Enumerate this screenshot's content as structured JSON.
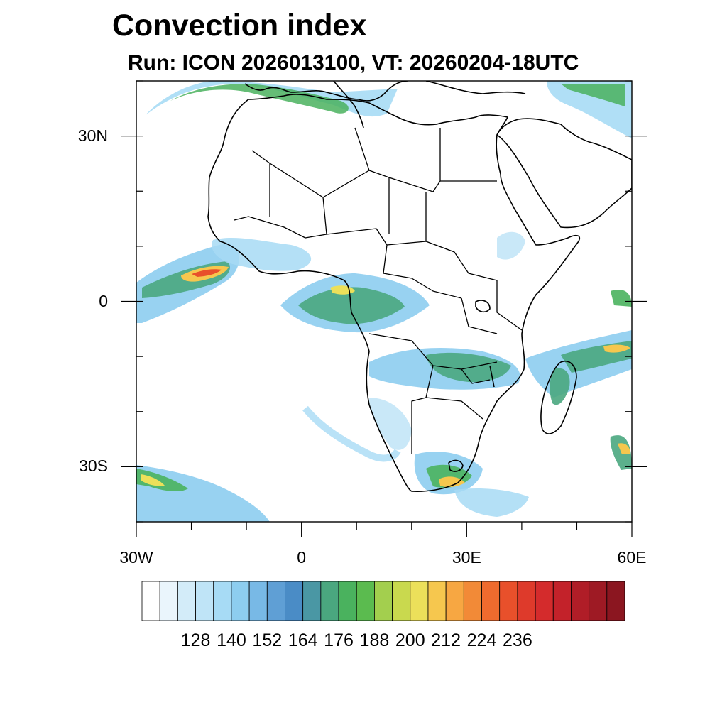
{
  "title": "Convection index",
  "subtitle": "Run: ICON 2026013100,  VT: 20260204-18UTC",
  "map": {
    "projection": "cylindrical equidistant",
    "lon_range": [
      -30,
      60
    ],
    "lat_range": [
      -40,
      40
    ],
    "x_ticks": [
      {
        "lon": -30,
        "label": "30W"
      },
      {
        "lon": 0,
        "label": "0"
      },
      {
        "lon": 30,
        "label": "30E"
      },
      {
        "lon": 60,
        "label": "60E"
      }
    ],
    "y_ticks": [
      {
        "lat": 30,
        "label": "30N"
      },
      {
        "lat": 0,
        "label": "0"
      },
      {
        "lat": -30,
        "label": "30S"
      }
    ],
    "coastline_color": "#000000"
  },
  "colorbar": {
    "colors": [
      "#ffffff",
      "#eaf5fc",
      "#d3ecf9",
      "#bfe4f7",
      "#a7dbf5",
      "#8dcdef",
      "#78b9e6",
      "#5f9fd5",
      "#4a8cc6",
      "#4a97a4",
      "#4aa77f",
      "#4ab25e",
      "#5bbb4f",
      "#a3cf4e",
      "#c9d94e",
      "#ece05a",
      "#f6c74e",
      "#f7a742",
      "#f28a37",
      "#ef6b2e",
      "#e8502b",
      "#de3a2b",
      "#d42b2c",
      "#c3222a",
      "#b01d27",
      "#9e1a24",
      "#8b1620"
    ],
    "labels": [
      "128",
      "140",
      "152",
      "164",
      "176",
      "188",
      "200",
      "212",
      "224",
      "236"
    ],
    "label_bin_index": [
      3,
      5,
      7,
      9,
      11,
      13,
      15,
      17,
      19,
      21
    ]
  }
}
